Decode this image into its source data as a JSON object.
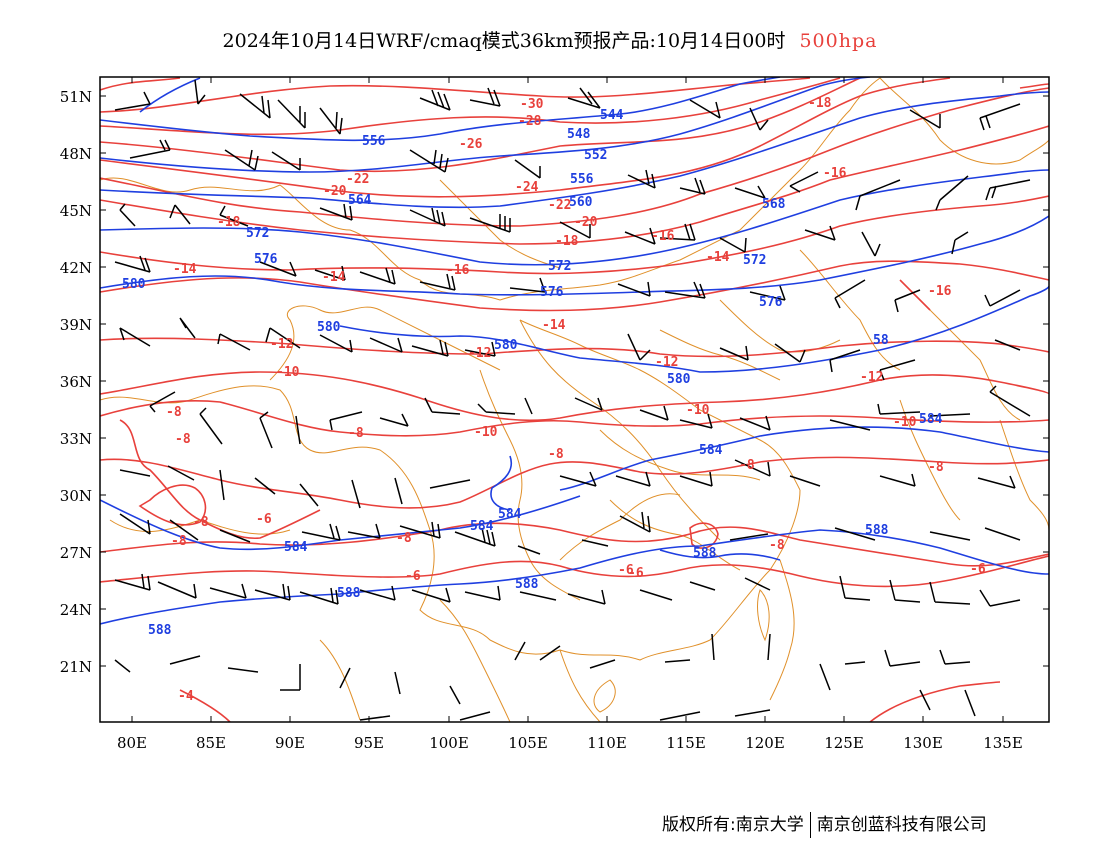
{
  "title": {
    "main": "2024年10月14日WRF/cmaq模式36km预报产品:10月14日00时",
    "level": "500hpa"
  },
  "axes": {
    "lat_ticks": [
      "51N",
      "48N",
      "45N",
      "42N",
      "39N",
      "36N",
      "33N",
      "30N",
      "27N",
      "24N",
      "21N"
    ],
    "lon_ticks": [
      "80E",
      "85E",
      "90E",
      "95E",
      "100E",
      "105E",
      "110E",
      "115E",
      "120E",
      "125E",
      "130E",
      "135E"
    ],
    "lon_range": [
      78,
      138
    ],
    "lat_range": [
      18,
      52
    ]
  },
  "colors": {
    "temperature": "#e8413c",
    "geopotential": "#1f3fe0",
    "border": "#e0902a",
    "wind": "#000000"
  },
  "map_labels": {
    "temperature": [
      "-30",
      "-28",
      "-26",
      "-24",
      "-22",
      "-22",
      "-20",
      "-20",
      "-18",
      "-18",
      "-18",
      "-16",
      "-16",
      "-16",
      "-16",
      "-14",
      "-14",
      "-14",
      "-14",
      "-12",
      "-12",
      "-12",
      "-12",
      "-10",
      "-10",
      "-10",
      "-10",
      "-8",
      "-8",
      "-8",
      "-8",
      "-8",
      "-8",
      "-8",
      "-8",
      "-8",
      "-8",
      "-6",
      "-6",
      "-6",
      "-6",
      "-6",
      "-4"
    ],
    "geopotential": [
      "544",
      "548",
      "552",
      "556",
      "556",
      "560",
      "564",
      "568",
      "572",
      "572",
      "572",
      "576",
      "576",
      "576",
      "580",
      "580",
      "580",
      "580",
      "584",
      "584",
      "584",
      "584",
      "584",
      "588",
      "588",
      "588",
      "588",
      "588",
      "58"
    ]
  },
  "footer": {
    "left": "版权所有:南京大学",
    "right": "南京创蓝科技有限公司"
  }
}
